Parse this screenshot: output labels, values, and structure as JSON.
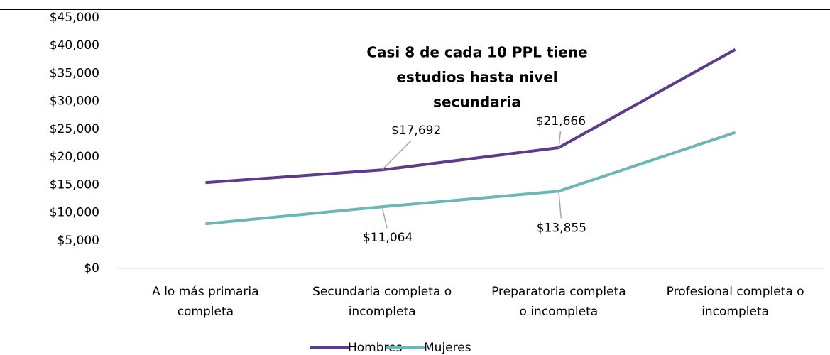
{
  "chart_data": {
    "type": "line",
    "annotation": [
      "Casi 8 de cada 10 PPL tiene",
      "estudios hasta nivel",
      "secundaria"
    ],
    "categories": [
      "A lo más primaria completa",
      "Secundaria completa o incompleta",
      "Preparatoria completa o incompleta",
      "Profesional completa o incompleta"
    ],
    "series": [
      {
        "name": "Hombres",
        "color": "#5c3b8c",
        "values": [
          15400,
          17692,
          21666,
          39300
        ],
        "value_labels": [
          null,
          "$17,692",
          "$21,666",
          null
        ]
      },
      {
        "name": "Mujeres",
        "color": "#6bb6b6",
        "values": [
          8000,
          11064,
          13855,
          24400
        ],
        "value_labels": [
          null,
          "$11,064",
          "$13,855",
          null
        ]
      }
    ],
    "ylim": [
      0,
      45000
    ],
    "yticks": [
      {
        "value": 0,
        "label": "$0"
      },
      {
        "value": 5000,
        "label": "$5,000"
      },
      {
        "value": 10000,
        "label": "$10,000"
      },
      {
        "value": 15000,
        "label": "$15,000"
      },
      {
        "value": 20000,
        "label": "$20,000"
      },
      {
        "value": 25000,
        "label": "$25,000"
      },
      {
        "value": 30000,
        "label": "$30,000"
      },
      {
        "value": 35000,
        "label": "$35,000"
      },
      {
        "value": 40000,
        "label": "$40,000"
      },
      {
        "value": 45000,
        "label": "$45,000"
      }
    ],
    "grid": false,
    "legend": "bottom"
  }
}
